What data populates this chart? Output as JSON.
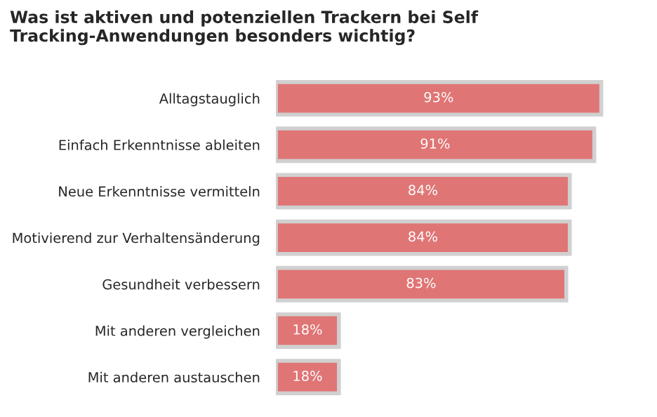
{
  "chart_data": {
    "type": "bar",
    "orientation": "horizontal",
    "title": "Was ist aktiven und potenziellen Trackern bei Self Tracking-Anwendungen besonders wichtig?",
    "categories": [
      "Alltagstauglich",
      "Einfach Erkenntnisse ableiten",
      "Neue Erkenntnisse vermitteln",
      "Motivierend zur Verhaltensänderung",
      "Gesundheit verbessern",
      "Mit anderen vergleichen",
      "Mit anderen austauschen"
    ],
    "values": [
      93,
      91,
      84,
      84,
      83,
      18,
      18
    ],
    "value_labels": [
      "93%",
      "91%",
      "84%",
      "84%",
      "83%",
      "18%",
      "18%"
    ],
    "color": "#e07575",
    "grid": false,
    "legend": false
  }
}
